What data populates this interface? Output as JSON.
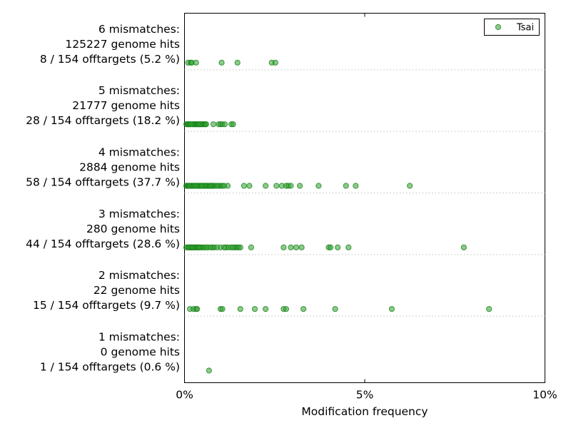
{
  "chart_data": {
    "type": "scatter",
    "xlabel": "Modification frequency",
    "xlim": [
      0,
      10
    ],
    "x_ticks": [
      "0%",
      "5%",
      "10%"
    ],
    "x_tick_values": [
      0,
      5,
      10
    ],
    "legend": {
      "placement": "top-right",
      "entries": [
        "Tsai"
      ]
    },
    "grid": false,
    "colors": {
      "marker": "#2ca02c",
      "marker_edge": "#1a7f1a",
      "row_line": "#c8c8c8"
    },
    "rows": [
      {
        "label_lines": [
          "6 mismatches:",
          "125227 genome hits",
          "8 / 154 offtargets (5.2 %)"
        ],
        "values": [
          0.1,
          0.17,
          0.32,
          1.03,
          1.47,
          2.42,
          2.52,
          0.2
        ]
      },
      {
        "label_lines": [
          "5 mismatches:",
          "21777 genome hits",
          "28 / 154 offtargets (18.2 %)"
        ],
        "values": [
          0.05,
          0.08,
          0.1,
          0.12,
          0.15,
          0.25,
          0.28,
          0.3,
          0.33,
          0.35,
          0.38,
          0.42,
          0.48,
          0.52,
          0.55,
          0.58,
          0.8,
          0.95,
          1.0,
          1.05,
          1.12,
          1.3,
          1.35,
          0.45,
          0.22,
          0.18,
          0.4,
          0.6
        ]
      },
      {
        "label_lines": [
          "4 mismatches:",
          "2884 genome hits",
          "58 / 154 offtargets (37.7 %)"
        ],
        "values": [
          0.05,
          0.08,
          0.1,
          0.12,
          0.15,
          0.18,
          0.2,
          0.22,
          0.25,
          0.28,
          0.3,
          0.33,
          0.36,
          0.4,
          0.42,
          0.45,
          0.48,
          0.5,
          0.52,
          0.55,
          0.58,
          0.6,
          0.62,
          0.65,
          0.7,
          0.72,
          0.75,
          0.78,
          0.8,
          0.85,
          0.95,
          1.0,
          1.05,
          1.2,
          1.65,
          1.8,
          2.25,
          2.55,
          2.7,
          2.82,
          2.88,
          2.95,
          3.2,
          3.72,
          4.48,
          4.75,
          6.25,
          0.38,
          0.68,
          0.9,
          0.14,
          0.26,
          0.44,
          0.56,
          0.74,
          1.1,
          0.32,
          0.48
        ]
      },
      {
        "label_lines": [
          "3 mismatches:",
          "280 genome hits",
          "44 / 154 offtargets (28.6 %)"
        ],
        "values": [
          0.05,
          0.1,
          0.15,
          0.2,
          0.25,
          0.28,
          0.32,
          0.35,
          0.4,
          0.45,
          0.5,
          0.55,
          0.65,
          0.78,
          0.82,
          1.0,
          1.15,
          1.22,
          1.3,
          1.4,
          1.45,
          1.5,
          1.55,
          1.85,
          2.75,
          2.95,
          3.1,
          3.25,
          4.0,
          4.05,
          4.25,
          4.55,
          7.75,
          0.18,
          0.3,
          0.38,
          0.6,
          0.72,
          0.9,
          1.1,
          1.35,
          0.12,
          0.22,
          0.42
        ]
      },
      {
        "label_lines": [
          "2 mismatches:",
          "22 genome hits",
          "15 / 154 offtargets (9.7 %)"
        ],
        "values": [
          0.15,
          0.25,
          0.32,
          0.35,
          1.0,
          1.05,
          1.55,
          1.95,
          2.25,
          2.75,
          2.82,
          3.3,
          4.18,
          5.75,
          8.45
        ]
      },
      {
        "label_lines": [
          "1 mismatches:",
          "0 genome hits",
          "1 / 154 offtargets (0.6 %)"
        ],
        "values": [
          0.68
        ]
      }
    ]
  }
}
